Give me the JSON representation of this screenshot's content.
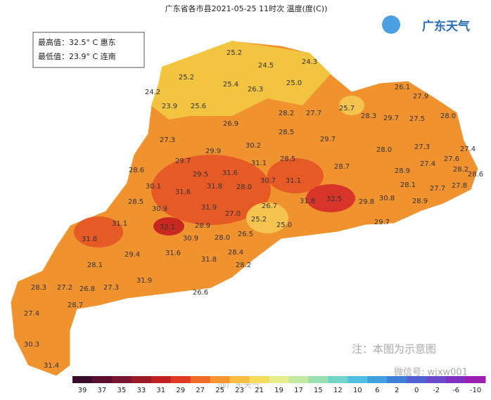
{
  "header": {
    "title": "广东省各市县2021-05-25 11时次 温度(度(C))",
    "logo": "广东天气"
  },
  "extremes": {
    "max": "最高值：32.5° C 惠东",
    "min": "最低值：23.9° C 连南"
  },
  "stations": [
    "25.2",
    "24.5",
    "24.3",
    "25.2",
    "25.4",
    "26.3",
    "25.0",
    "24.2",
    "26.1",
    "27.9",
    "23.9",
    "25.6",
    "28.2",
    "27.7",
    "25.7",
    "28.3",
    "29.7",
    "27.5",
    "28.0",
    "26.9",
    "28.5",
    "27.3",
    "29.7",
    "28.0",
    "27.3",
    "27.4",
    "30.2",
    "29.9",
    "29.7",
    "31.1",
    "28.5",
    "27.6",
    "27.4",
    "28.7",
    "28.6",
    "29.5",
    "31.6",
    "28.9",
    "28.2",
    "28.6",
    "27.8",
    "30.1",
    "31.6",
    "31.8",
    "28.0",
    "30.7",
    "31.1",
    "28.1",
    "27.7",
    "28.5",
    "31.8",
    "32.5",
    "29.8",
    "30.8",
    "28.9",
    "30.9",
    "31.9",
    "27.0",
    "26.7",
    "25.2",
    "25.0",
    "29.7",
    "31.1",
    "32.1",
    "28.9",
    "26.5",
    "31.8",
    "30.9",
    "28.0",
    "29.4",
    "31.6",
    "28.4",
    "31.8",
    "28.2",
    "28.1",
    "31.9",
    "28.3",
    "27.2",
    "26.8",
    "27.3",
    "26.6",
    "28.7",
    "27.4",
    "30.3",
    "31.4"
  ],
  "notes": {
    "disclaimer": "注：本图为示意图",
    "wechat": "微信号: wjxw001",
    "watermark": "@广东天气"
  },
  "colorbar": {
    "labels": [
      "39",
      "37",
      "35",
      "33",
      "31",
      "29",
      "27",
      "25",
      "23",
      "21",
      "19",
      "17",
      "15",
      "12",
      "10",
      "6",
      "2",
      "0",
      "-2",
      "-6",
      "-10"
    ],
    "colors": [
      "#3a0a2a",
      "#5a0f2e",
      "#7a1530",
      "#9a1a25",
      "#c02020",
      "#e03a20",
      "#f06a28",
      "#f5962e",
      "#f7bd40",
      "#f5dc5a",
      "#e6ef8c",
      "#c0eba0",
      "#98e0b0",
      "#70d5c8",
      "#50c0e0",
      "#40a0e0",
      "#4080d8",
      "#5060d0",
      "#6a4ac8",
      "#8030c0",
      "#9a20b0"
    ]
  }
}
